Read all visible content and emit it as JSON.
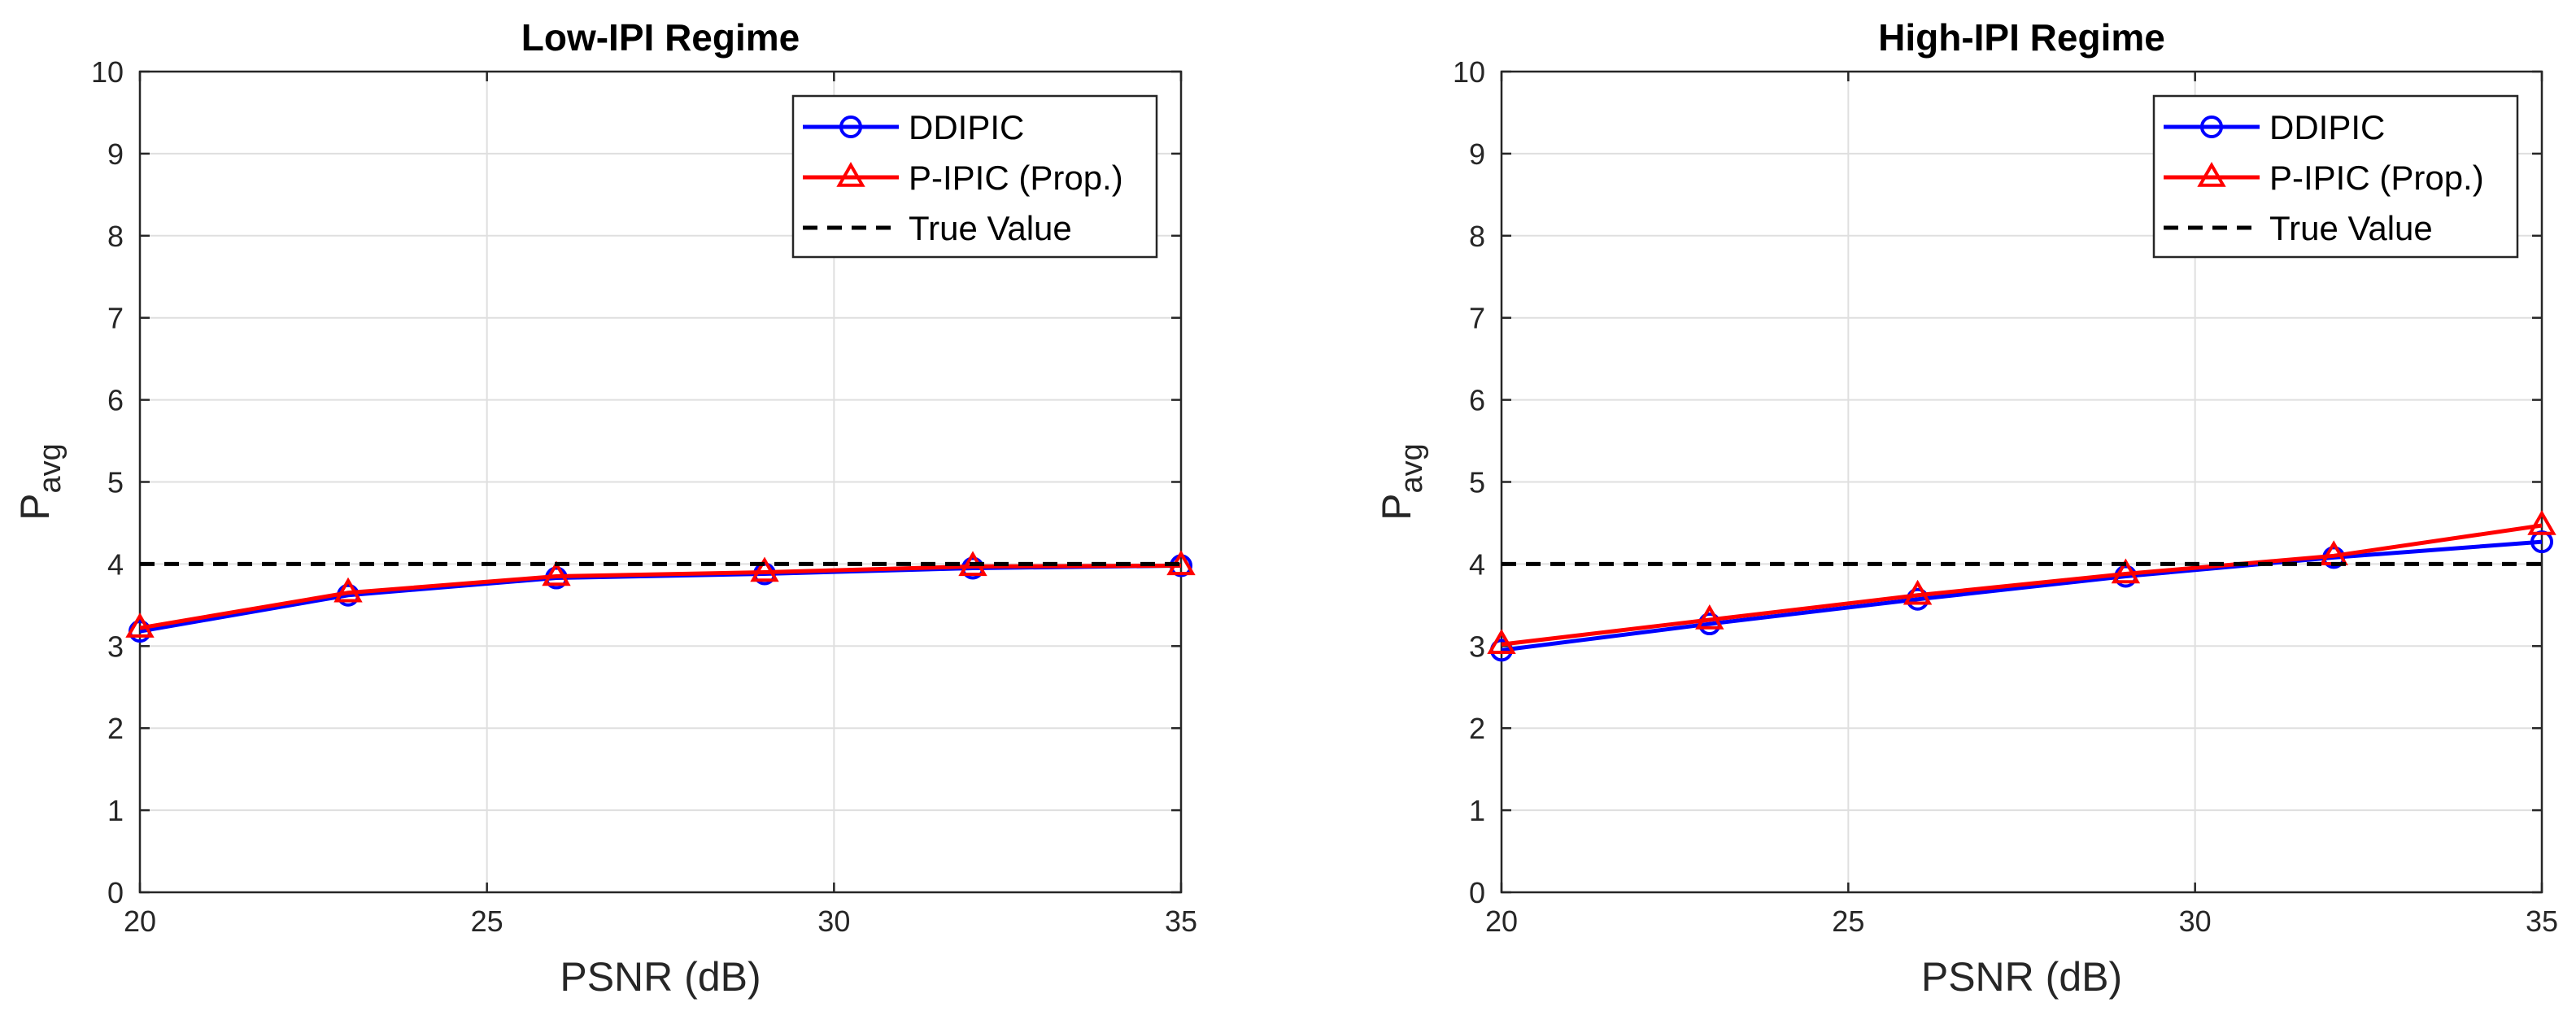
{
  "chart_data": [
    {
      "type": "line",
      "title": "Low-IPI Regime",
      "xlabel": "PSNR (dB)",
      "ylabel_main": "P",
      "ylabel_sub": "avg",
      "xlim": [
        20,
        35
      ],
      "ylim": [
        0,
        10
      ],
      "x_ticks": [
        20,
        25,
        30,
        35
      ],
      "y_ticks": [
        0,
        1,
        2,
        3,
        4,
        5,
        6,
        7,
        8,
        9,
        10
      ],
      "grid": true,
      "legend_position": "top-right",
      "x": [
        20,
        23,
        26,
        29,
        32,
        35
      ],
      "series": [
        {
          "name": "DDIPIC",
          "color": "#0000ff",
          "marker": "circle",
          "values": [
            3.18,
            3.62,
            3.83,
            3.88,
            3.95,
            3.98
          ]
        },
        {
          "name": "P-IPIC (Prop.)",
          "color": "#ff0000",
          "marker": "triangle",
          "values": [
            3.22,
            3.65,
            3.85,
            3.9,
            3.97,
            3.98
          ]
        },
        {
          "name": "True Value",
          "color": "#000000",
          "marker": "none",
          "dashed": true,
          "values": [
            4,
            4,
            4,
            4,
            4,
            4
          ]
        }
      ]
    },
    {
      "type": "line",
      "title": "High-IPI Regime",
      "xlabel": "PSNR (dB)",
      "ylabel_main": "P",
      "ylabel_sub": "avg",
      "xlim": [
        20,
        35
      ],
      "ylim": [
        0,
        10
      ],
      "x_ticks": [
        20,
        25,
        30,
        35
      ],
      "y_ticks": [
        0,
        1,
        2,
        3,
        4,
        5,
        6,
        7,
        8,
        9,
        10
      ],
      "grid": true,
      "legend_position": "top-right",
      "x": [
        20,
        23,
        26,
        29,
        32,
        35
      ],
      "series": [
        {
          "name": "DDIPIC",
          "color": "#0000ff",
          "marker": "circle",
          "values": [
            2.95,
            3.27,
            3.57,
            3.85,
            4.08,
            4.27
          ]
        },
        {
          "name": "P-IPIC (Prop.)",
          "color": "#ff0000",
          "marker": "triangle",
          "values": [
            3.02,
            3.32,
            3.62,
            3.88,
            4.1,
            4.47
          ]
        },
        {
          "name": "True Value",
          "color": "#000000",
          "marker": "none",
          "dashed": true,
          "values": [
            4,
            4,
            4,
            4,
            4,
            4
          ]
        }
      ]
    }
  ]
}
